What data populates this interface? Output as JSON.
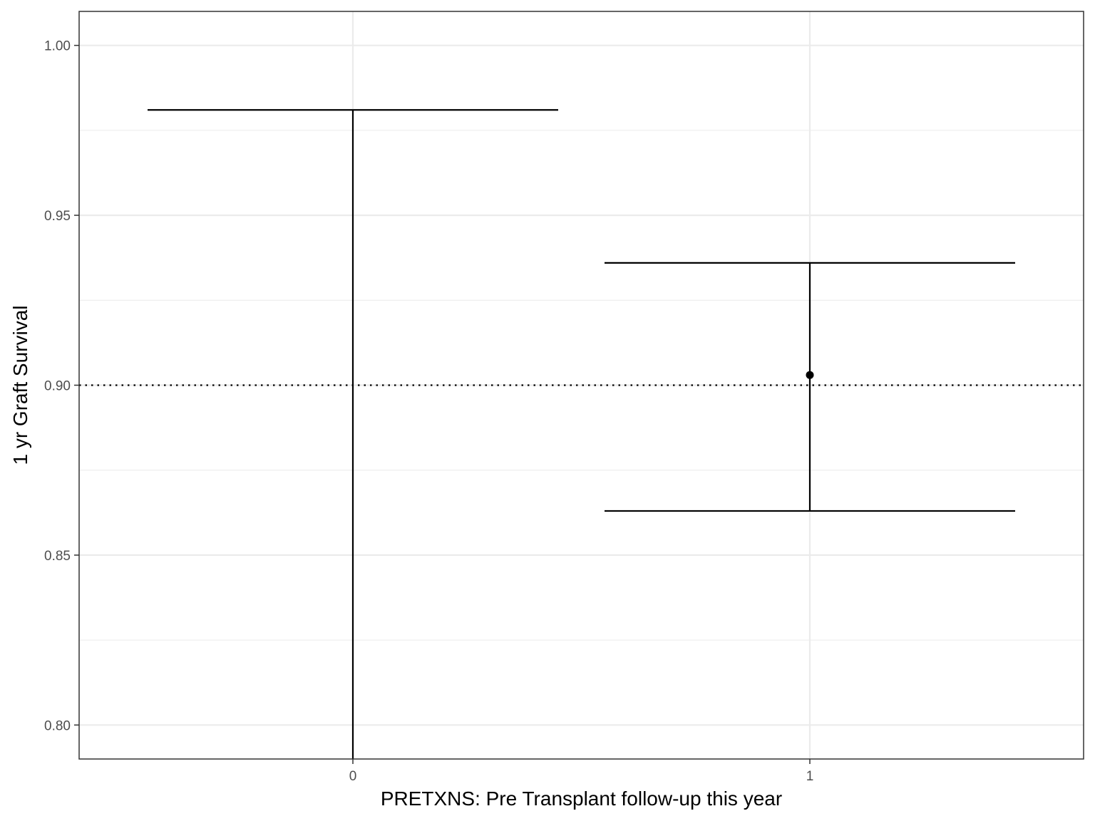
{
  "chart_data": {
    "type": "errorbar",
    "xlabel": "PRETXNS: Pre Transplant follow-up this year",
    "ylabel": "1 yr Graft Survival",
    "categories": [
      "0",
      "1"
    ],
    "ylim": [
      0.79,
      1.01
    ],
    "y_ticks": [
      "0.80",
      "0.85",
      "0.90",
      "0.95",
      "1.00"
    ],
    "points": [
      {
        "x": "0",
        "estimate": null,
        "lower": 0.0,
        "upper": 0.981
      },
      {
        "x": "1",
        "estimate": 0.903,
        "lower": 0.863,
        "upper": 0.936
      }
    ],
    "reference_line": {
      "y": 0.9,
      "style": "dotted"
    },
    "grid": true,
    "legend": "none",
    "colors": {
      "marks": "#000000",
      "grid": "#ebebeb",
      "panel_border": "#333333"
    }
  }
}
